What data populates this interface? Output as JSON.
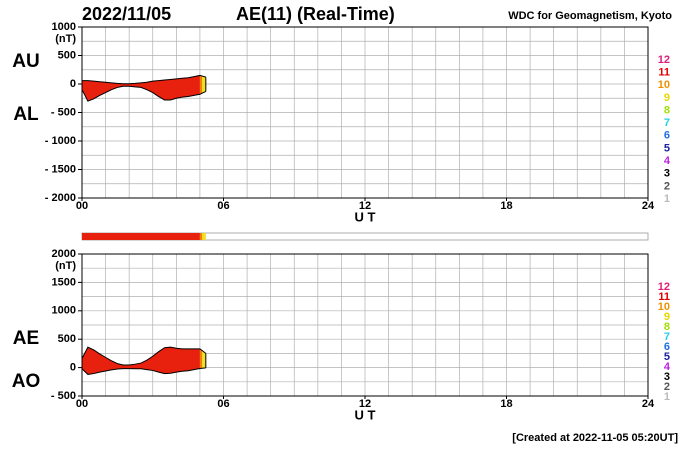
{
  "header": {
    "date": "2022/11/05",
    "title": "AE(11) (Real-Time)",
    "source": "WDC for Geomagnetism, Kyoto",
    "created": "[Created at 2022-11-05 05:20UT]"
  },
  "coverage": [
    {
      "start": 0,
      "end": 5.0,
      "color": "#e8200e"
    },
    {
      "start": 5.0,
      "end": 5.1,
      "color": "#f08000"
    },
    {
      "start": 5.1,
      "end": 5.25,
      "color": "#f0e020"
    }
  ],
  "stations": [
    {
      "label": "12",
      "color": "#e0207a"
    },
    {
      "label": "11",
      "color": "#e00000"
    },
    {
      "label": "10",
      "color": "#f09000"
    },
    {
      "label": "9",
      "color": "#e8d800"
    },
    {
      "label": "8",
      "color": "#a0e000"
    },
    {
      "label": "7",
      "color": "#20d0e0"
    },
    {
      "label": "6",
      "color": "#2070e0"
    },
    {
      "label": "5",
      "color": "#2020a0"
    },
    {
      "label": "4",
      "color": "#c020e0"
    },
    {
      "label": "3",
      "color": "#000000"
    },
    {
      "label": "2",
      "color": "#555555"
    },
    {
      "label": "1",
      "color": "#bbbbbb"
    }
  ],
  "chart_data": [
    {
      "type": "band",
      "unit": "(nT)",
      "xlabel": "U T",
      "x": [
        0,
        0.25,
        0.5,
        0.75,
        1,
        1.25,
        1.5,
        1.75,
        2,
        2.25,
        2.5,
        2.75,
        3,
        3.25,
        3.5,
        3.75,
        4,
        4.25,
        4.5,
        4.75,
        5,
        5.25
      ],
      "series": [
        {
          "name": "AU",
          "color": "#000000",
          "values": [
            60,
            60,
            50,
            40,
            30,
            20,
            10,
            5,
            5,
            10,
            20,
            30,
            50,
            60,
            70,
            80,
            90,
            100,
            110,
            130,
            150,
            120
          ]
        },
        {
          "name": "AL",
          "color": "#000000",
          "values": [
            -100,
            -300,
            -260,
            -200,
            -150,
            -100,
            -60,
            -40,
            -40,
            -50,
            -60,
            -100,
            -150,
            -220,
            -280,
            -280,
            -250,
            -230,
            -220,
            -200,
            -180,
            -130
          ]
        }
      ],
      "xlim": [
        0,
        24
      ],
      "xticks": [
        {
          "value": 0,
          "label": "00"
        },
        {
          "value": 6,
          "label": "06"
        },
        12,
        18,
        24
      ],
      "xgrid": [
        1,
        2,
        3,
        4,
        5,
        6,
        7,
        8,
        9,
        10,
        11,
        12,
        13,
        14,
        15,
        16,
        17,
        18,
        19,
        20,
        21,
        22,
        23
      ],
      "ylim": [
        -2000,
        1000
      ],
      "yticks": [
        1000,
        500,
        0,
        {
          "value": -500,
          "label": "- 500"
        },
        {
          "value": -1000,
          "label": "- 1000"
        },
        {
          "value": -1500,
          "label": "- 1500"
        },
        {
          "value": -2000,
          "label": "- 2000"
        }
      ],
      "ygrid": [
        750,
        500,
        250,
        0,
        -250,
        -500,
        -750,
        -1000,
        -1250,
        -1500,
        -1750
      ]
    },
    {
      "type": "band",
      "unit": "(nT)",
      "xlabel": "U T",
      "x": [
        0,
        0.25,
        0.5,
        0.75,
        1,
        1.25,
        1.5,
        1.75,
        2,
        2.25,
        2.5,
        2.75,
        3,
        3.25,
        3.5,
        3.75,
        4,
        4.25,
        4.5,
        4.75,
        5,
        5.25
      ],
      "series": [
        {
          "name": "AE",
          "color": "#000000",
          "values": [
            160,
            360,
            310,
            240,
            180,
            120,
            70,
            45,
            45,
            60,
            80,
            130,
            200,
            280,
            350,
            360,
            340,
            330,
            330,
            330,
            330,
            250
          ]
        },
        {
          "name": "AO",
          "color": "#000000",
          "values": [
            -20,
            -120,
            -105,
            -80,
            -60,
            -40,
            -25,
            -17.5,
            -17.5,
            -20,
            -20,
            -35,
            -50,
            -80,
            -105,
            -100,
            -80,
            -65,
            -55,
            -35,
            -15,
            -5
          ]
        }
      ],
      "xlim": [
        0,
        24
      ],
      "xticks": [
        {
          "value": 0,
          "label": "00"
        },
        {
          "value": 6,
          "label": "06"
        },
        12,
        18,
        24
      ],
      "xgrid": [
        1,
        2,
        3,
        4,
        5,
        6,
        7,
        8,
        9,
        10,
        11,
        12,
        13,
        14,
        15,
        16,
        17,
        18,
        19,
        20,
        21,
        22,
        23
      ],
      "ylim": [
        -500,
        2000
      ],
      "yticks": [
        2000,
        1500,
        1000,
        500,
        0,
        {
          "value": -500,
          "label": "- 500"
        }
      ],
      "ygrid": [
        1750,
        1500,
        1250,
        1000,
        750,
        500,
        250,
        0,
        -250
      ]
    }
  ]
}
